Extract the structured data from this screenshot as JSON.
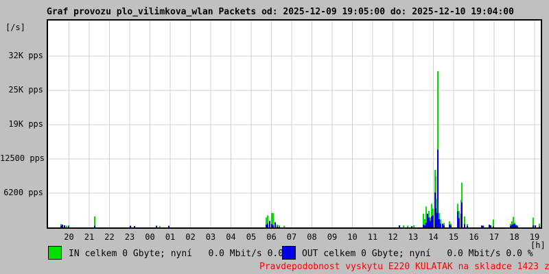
{
  "title": "Graf provozu plo_vilimkova_wlan Packets od: 2025-12-09 19:05:00 do: 2025-12-10 19:04:00",
  "y_axis_unit": "[/s]",
  "x_axis_unit": "[h]",
  "legend": {
    "in_label": "IN celkem 0 Gbyte; nyní   0.0 Mbit/s 0.0 %",
    "out_label": "OUT celkem 0 Gbyte; nyní   0.0 Mbit/s 0.0 %"
  },
  "footer_note": "Pravdepodobnost vyskytu E220 KULATAK na skladce 1423 z 1440 (98.8 %)",
  "colors": {
    "background": "#c0c0c0",
    "plot_background": "#ffffff",
    "grid": "#d0d0d0",
    "border": "#000000",
    "in_series": "#00df00",
    "out_series": "#0000e8",
    "footer_text": "#ff0000",
    "text": "#000000"
  },
  "chart_data": {
    "type": "area",
    "subtype": "spike-columns",
    "title": "Graf provozu plo_vilimkova_wlan Packets od: 2025-12-09 19:05:00 do: 2025-12-10 19:04:00",
    "xlabel": "[h]",
    "ylabel": "[/s]",
    "x_axis": {
      "unit": "[h]",
      "ticks": [
        "20",
        "21",
        "22",
        "23",
        "00",
        "01",
        "02",
        "03",
        "04",
        "05",
        "06",
        "07",
        "08",
        "09",
        "10",
        "11",
        "12",
        "13",
        "14",
        "15",
        "16",
        "17",
        "18",
        "19"
      ],
      "note": "time axis, hours; t values in rows are hours elapsed since 2025-12-09 19:00"
    },
    "y_axis": {
      "unit": "pps",
      "ticks": [
        "32K pps",
        "25K pps",
        "19K pps",
        "12500 pps",
        "6200 pps"
      ],
      "tick_values": [
        32000,
        25000,
        19000,
        12500,
        6200
      ]
    },
    "ylim": [
      0,
      37400
    ],
    "grid": true,
    "legend_position": "bottom",
    "series": [
      {
        "name": "IN",
        "color": "#00df00",
        "unit": "pps"
      },
      {
        "name": "OUT",
        "color": "#0000e8",
        "unit": "pps"
      }
    ],
    "columns": [
      "t_hours",
      "in_pps",
      "out_pps"
    ],
    "rows": [
      [
        0.61,
        600,
        300
      ],
      [
        0.68,
        400,
        500
      ],
      [
        0.78,
        0,
        400
      ],
      [
        0.88,
        300,
        0
      ],
      [
        0.98,
        400,
        200
      ],
      [
        2.27,
        2000,
        300
      ],
      [
        4.03,
        200,
        300
      ],
      [
        4.24,
        0,
        250
      ],
      [
        5.32,
        0,
        300
      ],
      [
        5.49,
        250,
        0
      ],
      [
        5.93,
        0,
        300
      ],
      [
        10.75,
        1800,
        500
      ],
      [
        10.81,
        2200,
        700
      ],
      [
        10.92,
        800,
        1200
      ],
      [
        11.02,
        2600,
        600
      ],
      [
        11.08,
        2600,
        400
      ],
      [
        11.19,
        300,
        900
      ],
      [
        11.29,
        500,
        200
      ],
      [
        11.39,
        400,
        150
      ],
      [
        11.63,
        300,
        0
      ],
      [
        17.32,
        200,
        400
      ],
      [
        17.53,
        350,
        0
      ],
      [
        17.73,
        300,
        0
      ],
      [
        17.93,
        250,
        200
      ],
      [
        18.03,
        400,
        0
      ],
      [
        18.51,
        2500,
        500
      ],
      [
        18.58,
        1500,
        400
      ],
      [
        18.64,
        3800,
        800
      ],
      [
        18.71,
        1200,
        2500
      ],
      [
        18.78,
        3000,
        1800
      ],
      [
        18.85,
        1800,
        1200
      ],
      [
        18.92,
        4300,
        2000
      ],
      [
        18.98,
        3400,
        2200
      ],
      [
        19.08,
        10400,
        6300
      ],
      [
        19.12,
        9300,
        3500
      ],
      [
        19.19,
        5200,
        2600
      ],
      [
        19.22,
        28300,
        14100
      ],
      [
        19.29,
        2600,
        1500
      ],
      [
        19.36,
        1400,
        700
      ],
      [
        19.46,
        500,
        700
      ],
      [
        19.53,
        800,
        400
      ],
      [
        19.8,
        1100,
        500
      ],
      [
        19.86,
        700,
        400
      ],
      [
        20.2,
        4300,
        2900
      ],
      [
        20.27,
        3000,
        1700
      ],
      [
        20.37,
        5000,
        2500
      ],
      [
        20.41,
        8100,
        4500
      ],
      [
        20.54,
        2000,
        600
      ],
      [
        20.68,
        600,
        300
      ],
      [
        21.39,
        400,
        300
      ],
      [
        21.46,
        350,
        250
      ],
      [
        21.76,
        300,
        500
      ],
      [
        21.83,
        250,
        350
      ],
      [
        21.97,
        1400,
        200
      ],
      [
        22.81,
        600,
        300
      ],
      [
        22.88,
        1100,
        500
      ],
      [
        22.95,
        1900,
        600
      ],
      [
        23.02,
        800,
        700
      ],
      [
        23.08,
        500,
        400
      ],
      [
        23.15,
        400,
        200
      ],
      [
        23.93,
        1800,
        400
      ],
      [
        24.03,
        300,
        400
      ],
      [
        24.24,
        700,
        200
      ]
    ]
  }
}
